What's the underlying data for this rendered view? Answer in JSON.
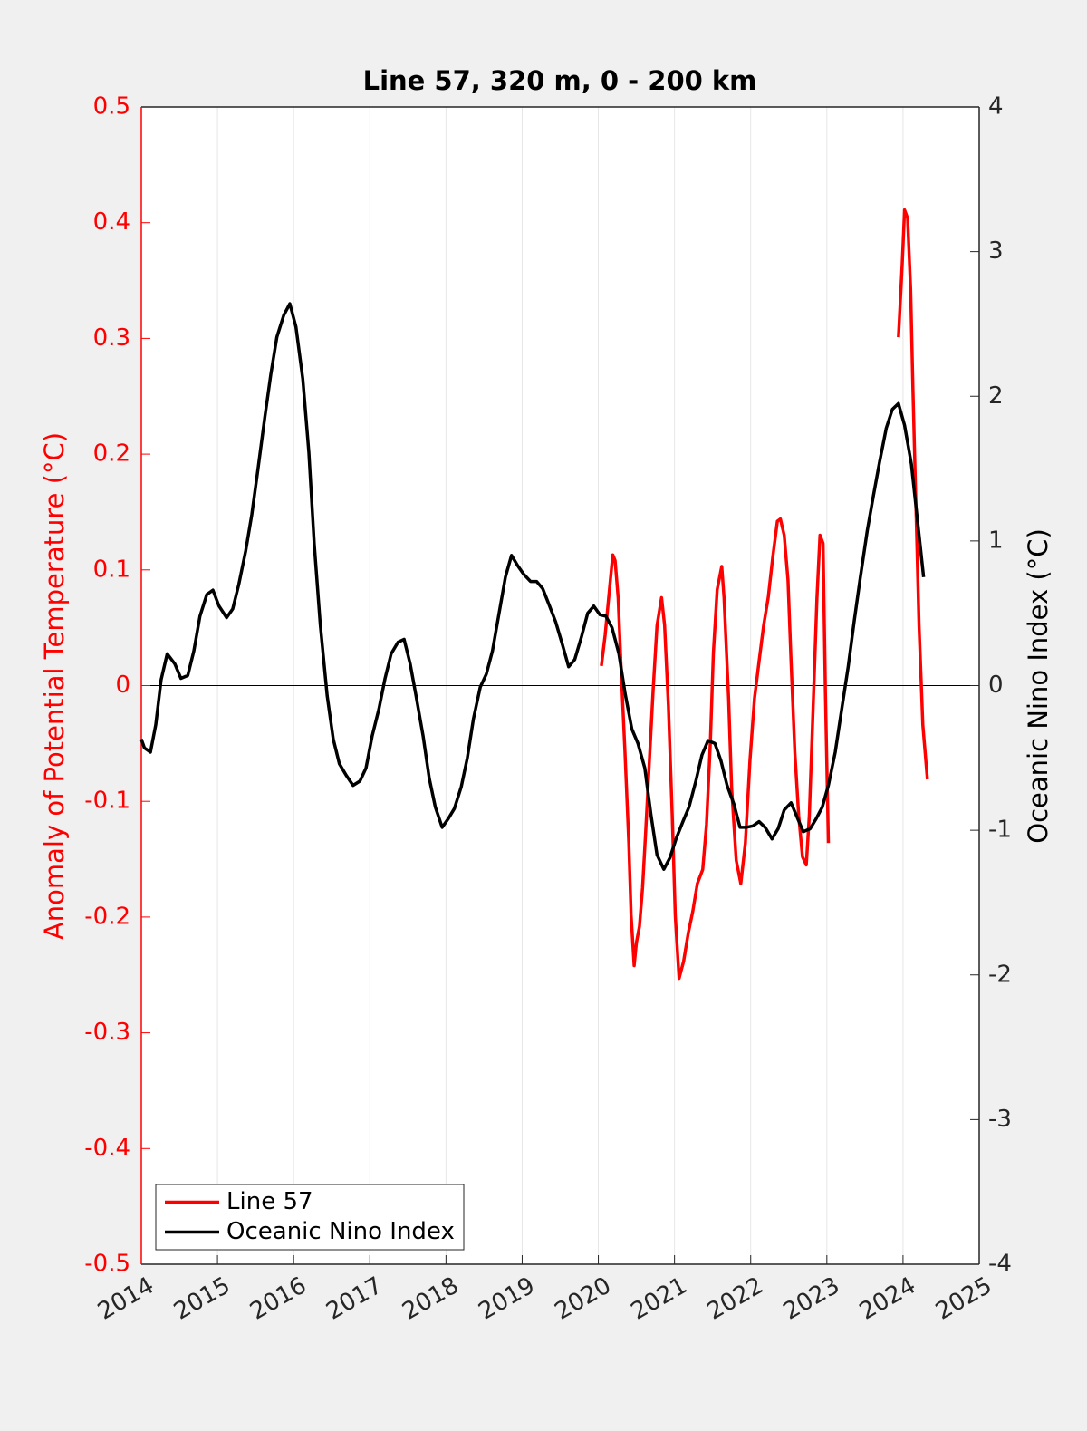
{
  "chart_data": {
    "type": "line",
    "title": "Line 57, 320 m, 0 - 200 km",
    "ylabel": "Anomaly of Potential Temperature (°C)",
    "y2label": "Oceanic Nino Index (°C)",
    "xlim": [
      2014,
      2025
    ],
    "xticks": [
      2014,
      2015,
      2016,
      2017,
      2018,
      2019,
      2020,
      2021,
      2022,
      2023,
      2024,
      2025
    ],
    "ylim": [
      -0.5,
      0.5
    ],
    "yticks": [
      -0.5,
      -0.4,
      -0.3,
      -0.2,
      -0.1,
      0,
      0.1,
      0.2,
      0.3,
      0.4,
      0.5
    ],
    "y2lim": [
      -4,
      4
    ],
    "y2ticks": [
      -4,
      -3,
      -2,
      -1,
      0,
      1,
      2,
      3,
      4
    ],
    "grid": true,
    "zero_line": true,
    "legend": "lower left",
    "series": [
      {
        "name": "Line 57",
        "color": "#ff0000",
        "axis": "y",
        "x": [
          2020.04,
          2020.09,
          2020.14,
          2020.19,
          2020.22,
          2020.26,
          2020.3,
          2020.35,
          2020.4,
          2020.43,
          2020.47,
          2020.5,
          2020.54,
          2020.58,
          2020.62,
          2020.67,
          2020.72,
          2020.77,
          2020.83,
          2020.87,
          2020.92,
          2020.97,
          2021.01,
          2021.06,
          2021.12,
          2021.18,
          2021.24,
          2021.3,
          2021.37,
          2021.42,
          2021.47,
          2021.51,
          2021.56,
          2021.62,
          2021.65,
          2021.71,
          2021.75,
          2021.81,
          2021.87,
          2021.93,
          2021.99,
          2022.05,
          2022.11,
          2022.17,
          2022.23,
          2022.29,
          2022.35,
          2022.39,
          2022.44,
          2022.49,
          2022.53,
          2022.58,
          2022.63,
          2022.68,
          2022.73,
          2022.77,
          2022.82,
          2022.87,
          2022.91,
          2022.95,
          2022.98,
          2023.02,
          2023.5,
          2023.94,
          2023.99,
          2024.02,
          2024.06,
          2024.1,
          2024.13,
          2024.17,
          2024.21,
          2024.26,
          2024.32
        ],
        "values": [
          0.017,
          0.044,
          0.079,
          0.113,
          0.108,
          0.076,
          0.013,
          -0.058,
          -0.136,
          -0.198,
          -0.242,
          -0.222,
          -0.208,
          -0.175,
          -0.128,
          -0.065,
          -0.003,
          0.052,
          0.076,
          0.052,
          -0.018,
          -0.112,
          -0.199,
          -0.253,
          -0.238,
          -0.214,
          -0.195,
          -0.171,
          -0.159,
          -0.12,
          -0.05,
          0.028,
          0.083,
          0.103,
          0.076,
          -0.011,
          -0.089,
          -0.151,
          -0.171,
          -0.136,
          -0.065,
          -0.011,
          0.021,
          0.052,
          0.076,
          0.111,
          0.142,
          0.144,
          0.13,
          0.091,
          0.021,
          -0.058,
          -0.112,
          -0.148,
          -0.155,
          -0.112,
          -0.018,
          0.076,
          0.13,
          0.123,
          -0.003,
          -0.136,
          null,
          0.301,
          0.365,
          0.411,
          0.404,
          0.342,
          0.256,
          0.154,
          0.052,
          -0.034,
          -0.081
        ]
      },
      {
        "name": "Oceanic Nino Index",
        "color": "#000000",
        "axis": "y2",
        "x": [
          2014.0,
          2014.04,
          2014.12,
          2014.19,
          2014.26,
          2014.34,
          2014.44,
          2014.52,
          2014.61,
          2014.69,
          2014.77,
          2014.86,
          2014.94,
          2015.02,
          2015.12,
          2015.2,
          2015.28,
          2015.37,
          2015.45,
          2015.53,
          2015.62,
          2015.7,
          2015.78,
          2015.87,
          2015.95,
          2016.03,
          2016.12,
          2016.2,
          2016.27,
          2016.35,
          2016.44,
          2016.52,
          2016.6,
          2016.69,
          2016.78,
          2016.87,
          2016.95,
          2017.03,
          2017.12,
          2017.2,
          2017.28,
          2017.37,
          2017.45,
          2017.53,
          2017.61,
          2017.7,
          2017.78,
          2017.86,
          2017.95,
          2018.03,
          2018.11,
          2018.2,
          2018.28,
          2018.36,
          2018.45,
          2018.53,
          2018.61,
          2018.69,
          2018.78,
          2018.86,
          2018.94,
          2019.02,
          2019.11,
          2019.19,
          2019.27,
          2019.36,
          2019.44,
          2019.53,
          2019.61,
          2019.69,
          2019.78,
          2019.86,
          2019.94,
          2020.02,
          2020.1,
          2020.18,
          2020.27,
          2020.35,
          2020.44,
          2020.52,
          2020.61,
          2020.69,
          2020.77,
          2020.86,
          2020.94,
          2021.02,
          2021.11,
          2021.19,
          2021.28,
          2021.36,
          2021.44,
          2021.53,
          2021.61,
          2021.69,
          2021.78,
          2021.86,
          2021.94,
          2022.03,
          2022.11,
          2022.19,
          2022.28,
          2022.36,
          2022.44,
          2022.53,
          2022.61,
          2022.69,
          2022.78,
          2022.86,
          2022.94,
          2023.02,
          2023.11,
          2023.19,
          2023.28,
          2023.36,
          2023.44,
          2023.53,
          2023.61,
          2023.69,
          2023.78,
          2023.86,
          2023.94,
          2024.02,
          2024.11,
          2024.19,
          2024.27
        ],
        "values": [
          -0.37,
          -0.43,
          -0.46,
          -0.27,
          0.04,
          0.22,
          0.15,
          0.05,
          0.07,
          0.24,
          0.48,
          0.63,
          0.66,
          0.55,
          0.47,
          0.53,
          0.7,
          0.93,
          1.18,
          1.49,
          1.85,
          2.15,
          2.41,
          2.56,
          2.64,
          2.48,
          2.12,
          1.61,
          0.98,
          0.42,
          -0.07,
          -0.37,
          -0.54,
          -0.62,
          -0.69,
          -0.66,
          -0.57,
          -0.35,
          -0.16,
          0.05,
          0.22,
          0.3,
          0.32,
          0.15,
          -0.08,
          -0.35,
          -0.64,
          -0.84,
          -0.98,
          -0.92,
          -0.85,
          -0.7,
          -0.5,
          -0.23,
          -0.01,
          0.08,
          0.24,
          0.48,
          0.75,
          0.9,
          0.83,
          0.77,
          0.72,
          0.72,
          0.67,
          0.55,
          0.44,
          0.28,
          0.13,
          0.18,
          0.34,
          0.5,
          0.55,
          0.49,
          0.48,
          0.4,
          0.22,
          -0.05,
          -0.3,
          -0.4,
          -0.57,
          -0.89,
          -1.17,
          -1.27,
          -1.19,
          -1.06,
          -0.94,
          -0.84,
          -0.66,
          -0.48,
          -0.38,
          -0.4,
          -0.52,
          -0.69,
          -0.82,
          -0.98,
          -0.98,
          -0.97,
          -0.94,
          -0.98,
          -1.06,
          -0.99,
          -0.86,
          -0.81,
          -0.91,
          -1.01,
          -0.99,
          -0.92,
          -0.84,
          -0.69,
          -0.46,
          -0.18,
          0.13,
          0.45,
          0.75,
          1.07,
          1.31,
          1.54,
          1.78,
          1.91,
          1.95,
          1.8,
          1.53,
          1.14,
          0.75
        ]
      }
    ]
  }
}
